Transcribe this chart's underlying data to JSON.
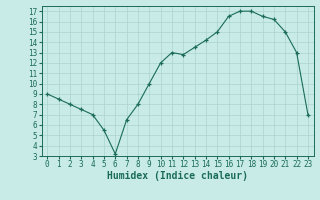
{
  "x": [
    0,
    1,
    2,
    3,
    4,
    5,
    6,
    7,
    8,
    9,
    10,
    11,
    12,
    13,
    14,
    15,
    16,
    17,
    18,
    19,
    20,
    21,
    22,
    23
  ],
  "y": [
    9,
    8.5,
    8,
    7.5,
    7,
    5.5,
    3.2,
    6.5,
    8.0,
    10.0,
    12.0,
    13.0,
    12.8,
    13.5,
    14.2,
    15.0,
    16.5,
    17.0,
    17.0,
    16.5,
    16.2,
    15.0,
    13.0,
    7.0
  ],
  "line_color": "#1a6b5a",
  "marker": "+",
  "marker_size": 3,
  "bg_color": "#c8ebe8",
  "grid_color": "#aad4d0",
  "xlabel": "Humidex (Indice chaleur)",
  "ylim": [
    3,
    17.5
  ],
  "xlim": [
    -0.5,
    23.5
  ],
  "yticks": [
    3,
    4,
    5,
    6,
    7,
    8,
    9,
    10,
    11,
    12,
    13,
    14,
    15,
    16,
    17
  ],
  "xticks": [
    0,
    1,
    2,
    3,
    4,
    5,
    6,
    7,
    8,
    9,
    10,
    11,
    12,
    13,
    14,
    15,
    16,
    17,
    18,
    19,
    20,
    21,
    22,
    23
  ],
  "figsize": [
    3.2,
    2.0
  ],
  "dpi": 100,
  "tick_fontsize": 5.5,
  "xlabel_fontsize": 7
}
